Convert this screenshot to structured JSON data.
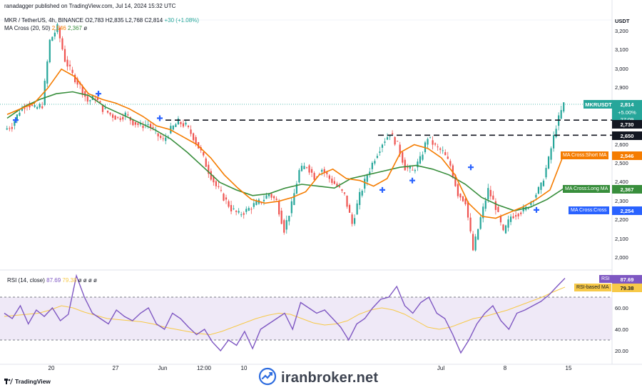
{
  "header": {
    "published": "ranadagger published on TradingView.com, Jul 14, 2024 15:32 UTC",
    "symbol_line": "MKR / TetherUS, 4h, BINANCE",
    "ohlc": {
      "o": "O2,783",
      "h": "H2,835",
      "l": "L2,768",
      "c": "C2,814",
      "chg": "+30 (+1.08%)"
    },
    "ma_cross_label": "MA Cross (20, 50)",
    "ma_cross_v1": "2,546",
    "ma_cross_v2": "2,367",
    "ma_cross_v3": "ø"
  },
  "currency": "USDT",
  "price_tags": {
    "symbol": "MKRUSDT",
    "last": "2,814",
    "change": "+5.00%",
    "countdown": "27:09",
    "level_high": "2,730",
    "level_low": "2,650",
    "short_ma_label": "MA Cross:Short MA",
    "short_ma_value": "2,546",
    "long_ma_label": "MA Cross:Long MA",
    "long_ma_value": "2,367",
    "cross_label": "MA Cross:Cross",
    "cross_value": "2,254"
  },
  "rsi": {
    "label": "RSI (14, close)",
    "value": "87.69",
    "ma_value": "79.38",
    "extras": "ø ø ø ø",
    "tag_rsi": "RSI",
    "tag_rsi_value": "87.69",
    "tag_ma": "RSI-based MA",
    "tag_ma_value": "79.38",
    "ticks": [
      "60.00",
      "40.00",
      "20.00"
    ]
  },
  "x_axis": [
    "20",
    "27",
    "Jun",
    "12:00",
    "10",
    "Jul",
    "8",
    "15"
  ],
  "footer": {
    "tradingview": "TradingView",
    "watermark": "iranbroker.net"
  },
  "colors": {
    "up": "#26a69a",
    "down": "#ef5350",
    "short_ma": "#f57c00",
    "long_ma": "#388e3c",
    "rsi": "#7e57c2",
    "rsi_ma": "#f7c948",
    "cross": "#2962ff"
  },
  "chart_data": [
    {
      "type": "candlestick",
      "title": "MKR / TetherUS, 4h, BINANCE",
      "y_unit": "USDT",
      "ylim": [
        1900,
        3300
      ],
      "y_ticks": [
        3200,
        3100,
        3000,
        2900,
        2700,
        2600,
        2500,
        2400,
        2300,
        2200,
        2100,
        2000
      ],
      "horizontal_levels": [
        2730,
        2650
      ],
      "close_path": [
        2700,
        2780,
        2820,
        2790,
        2810,
        3150,
        3220,
        3050,
        2970,
        2910,
        2830,
        2850,
        2790,
        2760,
        2740,
        2760,
        2720,
        2700,
        2710,
        2660,
        2620,
        2680,
        2720,
        2700,
        2640,
        2560,
        2460,
        2380,
        2320,
        2260,
        2230,
        2250,
        2280,
        2300,
        2340,
        2300,
        2150,
        2280,
        2460,
        2490,
        2430,
        2470,
        2420,
        2380,
        2330,
        2180,
        2330,
        2440,
        2530,
        2610,
        2660,
        2600,
        2480,
        2460,
        2520,
        2640,
        2590,
        2560,
        2490,
        2340,
        2300,
        2040,
        2210,
        2360,
        2270,
        2130,
        2220,
        2240,
        2260,
        2320,
        2380,
        2520,
        2700,
        2814
      ],
      "short_ma_path": [
        2760,
        2790,
        2820,
        2900,
        3000,
        2960,
        2870,
        2840,
        2820,
        2790,
        2750,
        2700,
        2680,
        2640,
        2600,
        2530,
        2440,
        2370,
        2310,
        2290,
        2300,
        2320,
        2350,
        2440,
        2470,
        2420,
        2410,
        2380,
        2420,
        2560,
        2600,
        2580,
        2530,
        2440,
        2290,
        2220,
        2210,
        2240,
        2270,
        2310,
        2360,
        2546
      ],
      "long_ma_path": [
        2740,
        2800,
        2840,
        2870,
        2880,
        2860,
        2800,
        2760,
        2720,
        2680,
        2630,
        2560,
        2480,
        2400,
        2360,
        2330,
        2340,
        2370,
        2390,
        2380,
        2370,
        2420,
        2440,
        2460,
        2480,
        2490,
        2470,
        2440,
        2390,
        2320,
        2280,
        2250,
        2270,
        2310,
        2367
      ],
      "last_price": 2814
    },
    {
      "type": "line",
      "title": "RSI (14, close)",
      "ylim": [
        10,
        95
      ],
      "y_ticks": [
        60,
        40,
        20
      ],
      "bands": [
        70,
        30
      ],
      "series": [
        {
          "name": "RSI (14, close)",
          "values": [
            55,
            50,
            62,
            45,
            58,
            52,
            60,
            48,
            54,
            90,
            70,
            55,
            50,
            45,
            58,
            52,
            48,
            55,
            60,
            45,
            40,
            55,
            50,
            42,
            35,
            40,
            28,
            20,
            30,
            25,
            38,
            22,
            40,
            45,
            50,
            55,
            40,
            65,
            60,
            55,
            58,
            50,
            42,
            30,
            45,
            50,
            60,
            68,
            70,
            80,
            62,
            55,
            65,
            70,
            55,
            50,
            35,
            18,
            30,
            45,
            55,
            62,
            48,
            40,
            55,
            58,
            62,
            66,
            72,
            80,
            87.69
          ]
        },
        {
          "name": "RSI-based MA",
          "values": [
            52,
            53,
            54,
            55,
            58,
            62,
            60,
            56,
            53,
            50,
            49,
            48,
            47,
            45,
            42,
            40,
            38,
            36,
            35,
            38,
            42,
            46,
            50,
            53,
            55,
            54,
            50,
            46,
            44,
            45,
            48,
            54,
            58,
            60,
            58,
            54,
            48,
            42,
            40,
            42,
            46,
            50,
            52,
            55,
            58,
            62,
            66,
            70,
            75,
            79.38
          ]
        }
      ]
    }
  ]
}
